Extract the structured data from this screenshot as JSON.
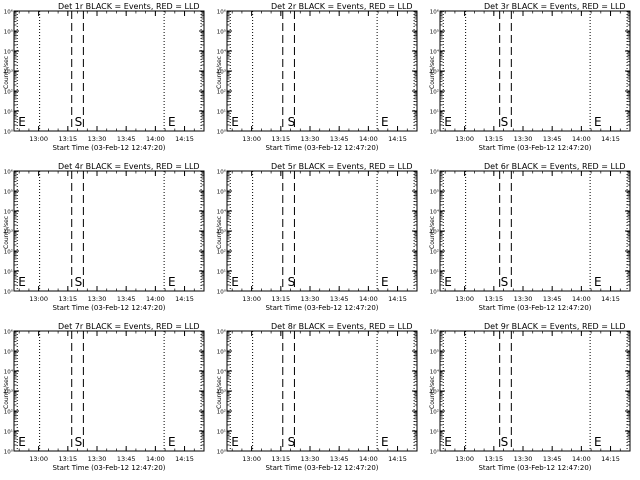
{
  "chart_data": [
    {
      "type": "line",
      "title": "Det 1r BLACK = Events, RED = LLD",
      "ylabel": "Counts/sec",
      "xlabel": "Start Time (03-Feb-12 12:47:20)",
      "yscale": "log",
      "ylim": [
        1,
        1000000
      ],
      "y_ticks": [
        "10⁰",
        "10¹",
        "10²",
        "10³",
        "10⁴",
        "10⁵",
        "10⁶"
      ],
      "x_ticks": [
        "13:00",
        "13:15",
        "13:30",
        "13:45",
        "14:00",
        "14:15"
      ],
      "xlim": [
        "12:47:20",
        "14:25:00"
      ],
      "dotted_lines": [
        "12:49:00",
        "13:00:30",
        "14:04:30",
        "14:23:30"
      ],
      "dashed_lines": [
        "13:17:00",
        "13:23:00"
      ],
      "markers": [
        {
          "label": "E",
          "x": "12:49:00"
        },
        {
          "label": "S",
          "x": "13:18:00"
        },
        {
          "label": "E",
          "x": "14:06:00"
        }
      ],
      "series": []
    },
    {
      "type": "line",
      "title": "Det 2r BLACK = Events, RED = LLD",
      "ylabel": "Counts/sec",
      "xlabel": "Start Time (03-Feb-12 12:47:20)",
      "yscale": "log",
      "ylim": [
        1,
        1000000
      ],
      "y_ticks": [
        "10⁰",
        "10¹",
        "10²",
        "10³",
        "10⁴",
        "10⁵",
        "10⁶"
      ],
      "x_ticks": [
        "13:00",
        "13:15",
        "13:30",
        "13:45",
        "14:00",
        "14:15"
      ],
      "xlim": [
        "12:47:20",
        "14:25:00"
      ],
      "dotted_lines": [
        "12:49:00",
        "13:00:30",
        "14:04:30",
        "14:23:30"
      ],
      "dashed_lines": [
        "13:16:00",
        "13:22:00"
      ],
      "markers": [
        {
          "label": "E",
          "x": "12:49:00"
        },
        {
          "label": "S",
          "x": "13:18:00"
        },
        {
          "label": "E",
          "x": "14:06:00"
        }
      ],
      "series": []
    },
    {
      "type": "line",
      "title": "Det 3r BLACK = Events, RED = LLD",
      "ylabel": "Counts/sec",
      "xlabel": "Start Time (03-Feb-12 12:47:20)",
      "yscale": "log",
      "ylim": [
        1,
        1000000
      ],
      "y_ticks": [
        "10⁰",
        "10¹",
        "10²",
        "10³",
        "10⁴",
        "10⁵",
        "10⁶"
      ],
      "x_ticks": [
        "13:00",
        "13:15",
        "13:30",
        "13:45",
        "14:00",
        "14:15"
      ],
      "xlim": [
        "12:47:20",
        "14:25:00"
      ],
      "dotted_lines": [
        "12:49:00",
        "13:00:30",
        "14:04:30",
        "14:23:30"
      ],
      "dashed_lines": [
        "13:18:00",
        "13:24:00"
      ],
      "markers": [
        {
          "label": "E",
          "x": "12:49:00"
        },
        {
          "label": "S",
          "x": "13:18:00"
        },
        {
          "label": "E",
          "x": "14:06:00"
        }
      ],
      "series": []
    },
    {
      "type": "line",
      "title": "Det 4r BLACK = Events, RED = LLD",
      "ylabel": "Counts/sec",
      "xlabel": "Start Time (03-Feb-12 12:47:20)",
      "yscale": "log",
      "ylim": [
        1,
        1000000
      ],
      "y_ticks": [
        "10⁰",
        "10¹",
        "10²",
        "10³",
        "10⁴",
        "10⁵",
        "10⁶"
      ],
      "x_ticks": [
        "13:00",
        "13:15",
        "13:30",
        "13:45",
        "14:00",
        "14:15"
      ],
      "xlim": [
        "12:47:20",
        "14:25:00"
      ],
      "dotted_lines": [
        "12:49:00",
        "13:00:30",
        "14:04:30",
        "14:23:30"
      ],
      "dashed_lines": [
        "13:17:00",
        "13:23:00"
      ],
      "markers": [
        {
          "label": "E",
          "x": "12:49:00"
        },
        {
          "label": "S",
          "x": "13:18:00"
        },
        {
          "label": "E",
          "x": "14:06:00"
        }
      ],
      "series": []
    },
    {
      "type": "line",
      "title": "Det 5r BLACK = Events, RED = LLD",
      "ylabel": "Counts/sec",
      "xlabel": "Start Time (03-Feb-12 12:47:20)",
      "yscale": "log",
      "ylim": [
        1,
        1000000
      ],
      "y_ticks": [
        "10⁰",
        "10¹",
        "10²",
        "10³",
        "10⁴",
        "10⁵",
        "10⁶"
      ],
      "x_ticks": [
        "13:00",
        "13:15",
        "13:30",
        "13:45",
        "14:00",
        "14:15"
      ],
      "xlim": [
        "12:47:20",
        "14:25:00"
      ],
      "dotted_lines": [
        "12:49:00",
        "13:00:30",
        "14:04:30",
        "14:23:30"
      ],
      "dashed_lines": [
        "13:16:00",
        "13:22:00"
      ],
      "markers": [
        {
          "label": "E",
          "x": "12:49:00"
        },
        {
          "label": "S",
          "x": "13:18:00"
        },
        {
          "label": "E",
          "x": "14:06:00"
        }
      ],
      "series": []
    },
    {
      "type": "line",
      "title": "Det 6r BLACK = Events, RED = LLD",
      "ylabel": "Counts/sec",
      "xlabel": "Start Time (03-Feb-12 12:47:20)",
      "yscale": "log",
      "ylim": [
        1,
        1000000
      ],
      "y_ticks": [
        "10⁰",
        "10¹",
        "10²",
        "10³",
        "10⁴",
        "10⁵",
        "10⁶"
      ],
      "x_ticks": [
        "13:00",
        "13:15",
        "13:30",
        "13:45",
        "14:00",
        "14:15"
      ],
      "xlim": [
        "12:47:20",
        "14:25:00"
      ],
      "dotted_lines": [
        "12:49:00",
        "13:00:30",
        "14:04:30",
        "14:23:30"
      ],
      "dashed_lines": [
        "13:18:00",
        "13:24:00"
      ],
      "markers": [
        {
          "label": "E",
          "x": "12:49:00"
        },
        {
          "label": "S",
          "x": "13:18:00"
        },
        {
          "label": "E",
          "x": "14:06:00"
        }
      ],
      "series": []
    },
    {
      "type": "line",
      "title": "Det 7r BLACK = Events, RED = LLD",
      "ylabel": "Counts/sec",
      "xlabel": "Start Time (03-Feb-12 12:47:20)",
      "yscale": "log",
      "ylim": [
        1,
        1000000
      ],
      "y_ticks": [
        "10⁰",
        "10¹",
        "10²",
        "10³",
        "10⁴",
        "10⁵",
        "10⁶"
      ],
      "x_ticks": [
        "13:00",
        "13:15",
        "13:30",
        "13:45",
        "14:00",
        "14:15"
      ],
      "xlim": [
        "12:47:20",
        "14:25:00"
      ],
      "dotted_lines": [
        "12:49:00",
        "13:00:30",
        "14:04:30",
        "14:23:30"
      ],
      "dashed_lines": [
        "13:17:00",
        "13:23:00"
      ],
      "markers": [
        {
          "label": "E",
          "x": "12:49:00"
        },
        {
          "label": "S",
          "x": "13:18:00"
        },
        {
          "label": "E",
          "x": "14:06:00"
        }
      ],
      "series": []
    },
    {
      "type": "line",
      "title": "Det 8r BLACK = Events, RED = LLD",
      "ylabel": "Counts/sec",
      "xlabel": "Start Time (03-Feb-12 12:47:20)",
      "yscale": "log",
      "ylim": [
        1,
        1000000
      ],
      "y_ticks": [
        "10⁰",
        "10¹",
        "10²",
        "10³",
        "10⁴",
        "10⁵",
        "10⁶"
      ],
      "x_ticks": [
        "13:00",
        "13:15",
        "13:30",
        "13:45",
        "14:00",
        "14:15"
      ],
      "xlim": [
        "12:47:20",
        "14:25:00"
      ],
      "dotted_lines": [
        "12:49:00",
        "13:00:30",
        "14:04:30",
        "14:23:30"
      ],
      "dashed_lines": [
        "13:16:00",
        "13:22:00"
      ],
      "markers": [
        {
          "label": "E",
          "x": "12:49:00"
        },
        {
          "label": "S",
          "x": "13:18:00"
        },
        {
          "label": "E",
          "x": "14:06:00"
        }
      ],
      "series": []
    },
    {
      "type": "line",
      "title": "Det 9r BLACK = Events, RED = LLD",
      "ylabel": "Counts/sec",
      "xlabel": "Start Time (03-Feb-12 12:47:20)",
      "yscale": "log",
      "ylim": [
        1,
        1000000
      ],
      "y_ticks": [
        "10⁰",
        "10¹",
        "10²",
        "10³",
        "10⁴",
        "10⁵",
        "10⁶"
      ],
      "x_ticks": [
        "13:00",
        "13:15",
        "13:30",
        "13:45",
        "14:00",
        "14:15"
      ],
      "xlim": [
        "12:47:20",
        "14:25:00"
      ],
      "dotted_lines": [
        "12:49:00",
        "13:00:30",
        "14:04:30",
        "14:23:30"
      ],
      "dashed_lines": [
        "13:18:00",
        "13:24:00"
      ],
      "markers": [
        {
          "label": "E",
          "x": "12:49:00"
        },
        {
          "label": "S",
          "x": "13:18:00"
        },
        {
          "label": "E",
          "x": "14:06:00"
        }
      ],
      "series": []
    }
  ]
}
